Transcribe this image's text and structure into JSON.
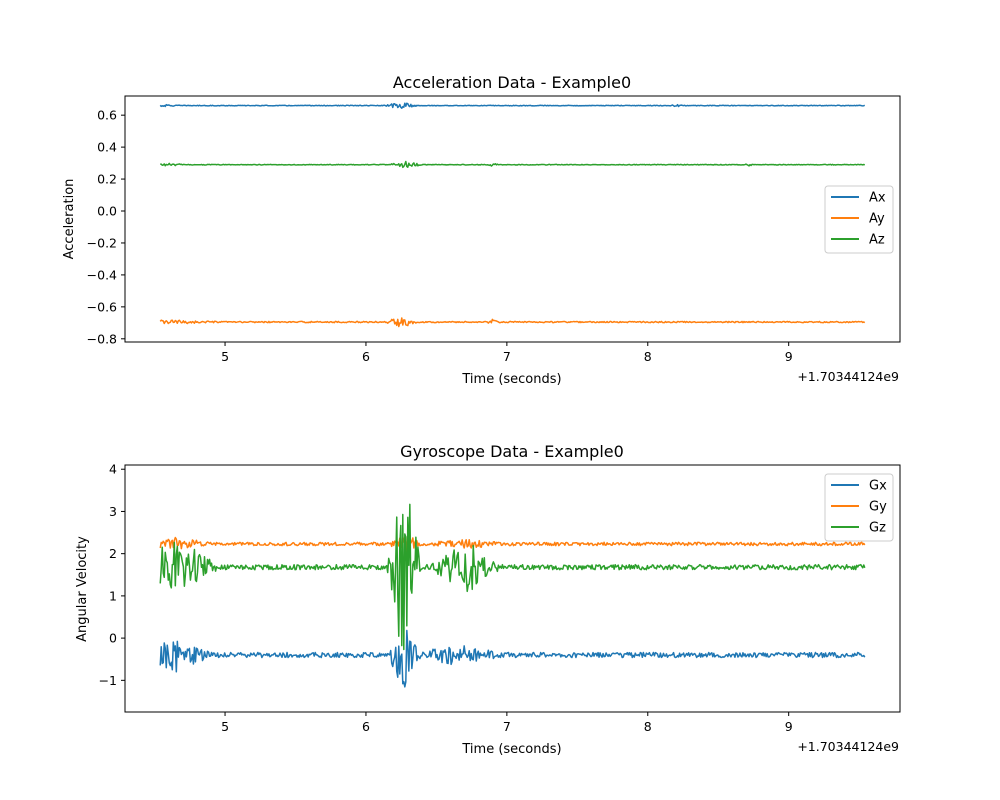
{
  "chart_data": [
    {
      "type": "line",
      "title": "Acceleration Data - Example0",
      "xlabel": "Time (seconds)",
      "ylabel": "Acceleration",
      "x_offset_label": "+1.70344124e9",
      "x_range": [
        4.54,
        9.54
      ],
      "xlim": [
        4.29,
        9.79
      ],
      "ylim": [
        -0.82,
        0.72
      ],
      "x_ticks": [
        5,
        6,
        7,
        8,
        9
      ],
      "x_tick_labels": [
        "5",
        "6",
        "7",
        "8",
        "9"
      ],
      "y_ticks": [
        0.6,
        0.4,
        0.2,
        0.0,
        -0.2,
        -0.4,
        -0.6,
        -0.8
      ],
      "y_tick_labels": [
        "0.6",
        "0.4",
        "0.2",
        "0.0",
        "−0.2",
        "−0.4",
        "−0.6",
        "−0.8"
      ],
      "legend_position": "center-right",
      "grid": false,
      "series": [
        {
          "name": "Ax",
          "color": "#1f77b4",
          "mean": 0.66,
          "noise": 0.002,
          "bursts": [
            {
              "x": 4.55,
              "w": 0.15,
              "amp": 0.005
            },
            {
              "x": 6.25,
              "w": 0.12,
              "amp": 0.02
            },
            {
              "x": 8.2,
              "w": 0.05,
              "amp": 0.006
            }
          ]
        },
        {
          "name": "Ay",
          "color": "#ff7f0e",
          "mean": -0.695,
          "noise": 0.004,
          "bursts": [
            {
              "x": 4.6,
              "w": 0.35,
              "amp": 0.01
            },
            {
              "x": 6.25,
              "w": 0.12,
              "amp": 0.03
            },
            {
              "x": 6.9,
              "w": 0.04,
              "amp": 0.015
            }
          ]
        },
        {
          "name": "Az",
          "color": "#2ca02c",
          "mean": 0.29,
          "noise": 0.002,
          "bursts": [
            {
              "x": 4.6,
              "w": 0.12,
              "amp": 0.008
            },
            {
              "x": 6.28,
              "w": 0.12,
              "amp": 0.02
            },
            {
              "x": 6.9,
              "w": 0.04,
              "amp": 0.01
            },
            {
              "x": 8.72,
              "w": 0.03,
              "amp": 0.008
            }
          ]
        }
      ]
    },
    {
      "type": "line",
      "title": "Gyroscope Data - Example0",
      "xlabel": "Time (seconds)",
      "ylabel": "Angular Velocity",
      "x_offset_label": "+1.70344124e9",
      "x_range": [
        4.54,
        9.54
      ],
      "xlim": [
        4.29,
        9.79
      ],
      "ylim": [
        -1.75,
        4.1
      ],
      "x_ticks": [
        5,
        6,
        7,
        8,
        9
      ],
      "x_tick_labels": [
        "5",
        "6",
        "7",
        "8",
        "9"
      ],
      "y_ticks": [
        4,
        3,
        2,
        1,
        0,
        -1
      ],
      "y_tick_labels": [
        "4",
        "3",
        "2",
        "1",
        "0",
        "−1"
      ],
      "legend_position": "upper-right",
      "grid": false,
      "series": [
        {
          "name": "Gx",
          "color": "#1f77b4",
          "mean": -0.4,
          "noise": 0.06,
          "bursts": [
            {
              "x": 4.65,
              "w": 0.25,
              "amp": 0.35
            },
            {
              "x": 6.27,
              "w": 0.12,
              "amp": 0.75
            },
            {
              "x": 6.65,
              "w": 0.3,
              "amp": 0.2
            }
          ]
        },
        {
          "name": "Gy",
          "color": "#ff7f0e",
          "mean": 2.23,
          "noise": 0.04,
          "bursts": [
            {
              "x": 4.65,
              "w": 0.25,
              "amp": 0.12
            },
            {
              "x": 6.28,
              "w": 0.12,
              "amp": 0.2
            },
            {
              "x": 6.7,
              "w": 0.25,
              "amp": 0.08
            }
          ]
        },
        {
          "name": "Gz",
          "color": "#2ca02c",
          "mean": 1.68,
          "noise": 0.06,
          "bursts": [
            {
              "x": 4.65,
              "w": 0.3,
              "amp": 0.65
            },
            {
              "x": 6.27,
              "w": 0.12,
              "amp": 2.4
            },
            {
              "x": 6.7,
              "w": 0.25,
              "amp": 0.6
            }
          ]
        }
      ]
    }
  ]
}
